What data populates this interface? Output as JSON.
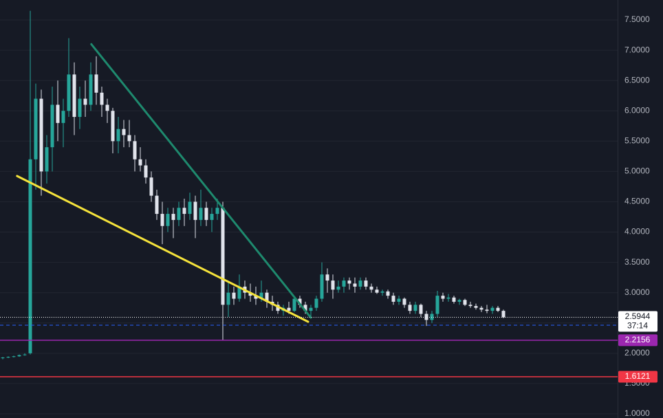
{
  "chart_data": {
    "type": "candlestick",
    "up_color": "#26a69a",
    "down_color": "#e0e3eb",
    "xlim": [
      -0.5,
      111.75
    ],
    "ylim": [
      0.932,
      7.829
    ],
    "yticks": [
      {
        "value": 1,
        "label": "1.0000"
      },
      {
        "value": 1.5,
        "label": "1.5000"
      },
      {
        "value": 2,
        "label": "2.0000"
      },
      {
        "value": 2.5,
        "label": "2.5000"
      },
      {
        "value": 3,
        "label": "3.0000"
      },
      {
        "value": 3.5,
        "label": "3.5000"
      },
      {
        "value": 4,
        "label": "4.0000"
      },
      {
        "value": 4.5,
        "label": "4.5000"
      },
      {
        "value": 5,
        "label": "5.0000"
      },
      {
        "value": 5.5,
        "label": "5.5000"
      },
      {
        "value": 6,
        "label": "6.0000"
      },
      {
        "value": 6.5,
        "label": "6.5000"
      },
      {
        "value": 7,
        "label": "7.0000"
      },
      {
        "value": 7.5,
        "label": "7.5000"
      }
    ],
    "grid": true,
    "candles": [
      [
        1.92,
        1.94,
        1.9,
        1.93
      ],
      [
        1.93,
        1.95,
        1.92,
        1.94
      ],
      [
        1.94,
        1.96,
        1.93,
        1.95
      ],
      [
        1.95,
        1.98,
        1.94,
        1.97
      ],
      [
        1.97,
        2.0,
        1.96,
        1.98
      ],
      [
        2.0,
        7.65,
        1.98,
        5.2
      ],
      [
        5.2,
        6.45,
        4.7,
        6.2
      ],
      [
        6.2,
        6.35,
        4.6,
        5.0
      ],
      [
        5.0,
        5.6,
        4.8,
        5.4
      ],
      [
        5.4,
        6.4,
        5.0,
        6.1
      ],
      [
        6.1,
        6.5,
        5.5,
        5.8
      ],
      [
        5.8,
        6.2,
        5.4,
        6.0
      ],
      [
        6.0,
        7.2,
        5.9,
        6.6
      ],
      [
        6.6,
        6.8,
        5.6,
        5.9
      ],
      [
        5.9,
        6.4,
        5.7,
        6.2
      ],
      [
        6.2,
        6.5,
        5.9,
        6.1
      ],
      [
        6.1,
        6.8,
        6.0,
        6.6
      ],
      [
        6.6,
        6.9,
        6.1,
        6.3
      ],
      [
        6.3,
        6.4,
        5.9,
        6.1
      ],
      [
        6.1,
        6.2,
        5.8,
        6.0
      ],
      [
        6.0,
        6.05,
        5.3,
        5.5
      ],
      [
        5.5,
        5.9,
        5.3,
        5.7
      ],
      [
        5.7,
        5.85,
        5.4,
        5.6
      ],
      [
        5.6,
        5.85,
        5.4,
        5.5
      ],
      [
        5.5,
        5.6,
        5.0,
        5.2
      ],
      [
        5.2,
        5.4,
        5.0,
        5.1
      ],
      [
        5.1,
        5.2,
        4.8,
        4.9
      ],
      [
        4.9,
        5.0,
        4.5,
        4.6
      ],
      [
        4.6,
        4.7,
        4.2,
        4.3
      ],
      [
        4.3,
        4.5,
        3.8,
        4.1
      ],
      [
        4.1,
        4.4,
        4.0,
        4.3
      ],
      [
        4.3,
        4.4,
        3.9,
        4.2
      ],
      [
        4.2,
        4.5,
        4.1,
        4.4
      ],
      [
        4.4,
        4.55,
        4.1,
        4.3
      ],
      [
        4.3,
        4.65,
        4.2,
        4.5
      ],
      [
        4.5,
        4.6,
        3.9,
        4.2
      ],
      [
        4.2,
        4.7,
        4.1,
        4.4
      ],
      [
        4.4,
        4.5,
        4.1,
        4.2
      ],
      [
        4.2,
        4.4,
        4.0,
        4.3
      ],
      [
        4.3,
        4.55,
        4.2,
        4.4
      ],
      [
        4.4,
        4.5,
        2.22,
        2.8
      ],
      [
        2.8,
        3.2,
        2.6,
        3.0
      ],
      [
        3.0,
        3.1,
        2.8,
        2.9
      ],
      [
        2.9,
        3.3,
        2.85,
        3.1
      ],
      [
        3.1,
        3.2,
        2.9,
        3.0
      ],
      [
        3.0,
        3.15,
        2.85,
        2.95
      ],
      [
        2.95,
        3.1,
        2.8,
        2.9
      ],
      [
        2.9,
        3.2,
        2.85,
        3.0
      ],
      [
        3.0,
        3.05,
        2.75,
        2.85
      ],
      [
        2.85,
        2.95,
        2.7,
        2.8
      ],
      [
        2.8,
        2.85,
        2.65,
        2.7
      ],
      [
        2.7,
        2.8,
        2.62,
        2.75
      ],
      [
        2.75,
        2.85,
        2.65,
        2.7
      ],
      [
        2.7,
        2.95,
        2.68,
        2.9
      ],
      [
        2.9,
        2.95,
        2.75,
        2.8
      ],
      [
        2.8,
        2.85,
        2.65,
        2.7
      ],
      [
        2.7,
        2.8,
        2.58,
        2.75
      ],
      [
        2.75,
        2.95,
        2.7,
        2.9
      ],
      [
        2.9,
        3.5,
        2.85,
        3.3
      ],
      [
        3.3,
        3.4,
        3.0,
        3.2
      ],
      [
        3.2,
        3.3,
        2.9,
        3.05
      ],
      [
        3.05,
        3.2,
        3.0,
        3.1
      ],
      [
        3.1,
        3.25,
        3.0,
        3.2
      ],
      [
        3.2,
        3.25,
        3.05,
        3.15
      ],
      [
        3.15,
        3.25,
        3.0,
        3.1
      ],
      [
        3.1,
        3.25,
        3.05,
        3.2
      ],
      [
        3.2,
        3.25,
        3.05,
        3.1
      ],
      [
        3.1,
        3.15,
        3.0,
        3.05
      ],
      [
        3.05,
        3.1,
        2.98,
        3.0
      ],
      [
        3.0,
        3.05,
        2.95,
        3.02
      ],
      [
        3.02,
        3.05,
        2.9,
        2.95
      ],
      [
        2.95,
        3.0,
        2.8,
        2.85
      ],
      [
        2.85,
        2.95,
        2.8,
        2.9
      ],
      [
        2.9,
        2.92,
        2.75,
        2.8
      ],
      [
        2.8,
        2.85,
        2.65,
        2.7
      ],
      [
        2.7,
        2.85,
        2.65,
        2.8
      ],
      [
        2.8,
        2.82,
        2.6,
        2.65
      ],
      [
        2.65,
        2.7,
        2.45,
        2.55
      ],
      [
        2.55,
        2.7,
        2.5,
        2.65
      ],
      [
        2.65,
        3.03,
        2.6,
        2.95
      ],
      [
        2.95,
        3.0,
        2.85,
        2.9
      ],
      [
        2.9,
        2.98,
        2.85,
        2.92
      ],
      [
        2.92,
        2.95,
        2.82,
        2.85
      ],
      [
        2.85,
        2.9,
        2.8,
        2.88
      ],
      [
        2.88,
        2.9,
        2.78,
        2.8
      ],
      [
        2.8,
        2.85,
        2.75,
        2.78
      ],
      [
        2.78,
        2.82,
        2.72,
        2.75
      ],
      [
        2.75,
        2.78,
        2.68,
        2.72
      ],
      [
        2.72,
        2.8,
        2.66,
        2.7
      ],
      [
        2.7,
        2.78,
        2.65,
        2.75
      ],
      [
        2.75,
        2.78,
        2.68,
        2.7
      ],
      [
        2.7,
        2.72,
        2.58,
        2.5944
      ]
    ],
    "trendlines": [
      {
        "color": "#1e8a6e",
        "x": [
          16.1,
          56
        ],
        "y": [
          7.1,
          2.588
        ]
      },
      {
        "color": "#f5e33b",
        "x": [
          2.6,
          55.5
        ],
        "y": [
          4.925,
          2.52
        ]
      }
    ],
    "price_lines": [
      {
        "value": 2.5944,
        "color": "#ffffff",
        "style": "dotted",
        "show_label": true,
        "countdown": "37:14"
      },
      {
        "value": 2.463,
        "color": "#2962ff",
        "style": "dashed",
        "show_label": false
      },
      {
        "value": 2.2156,
        "color": "#9c27b0",
        "style": "solid",
        "show_label": true
      },
      {
        "value": 1.6121,
        "color": "#f23645",
        "style": "solid",
        "show_label": true
      }
    ]
  }
}
